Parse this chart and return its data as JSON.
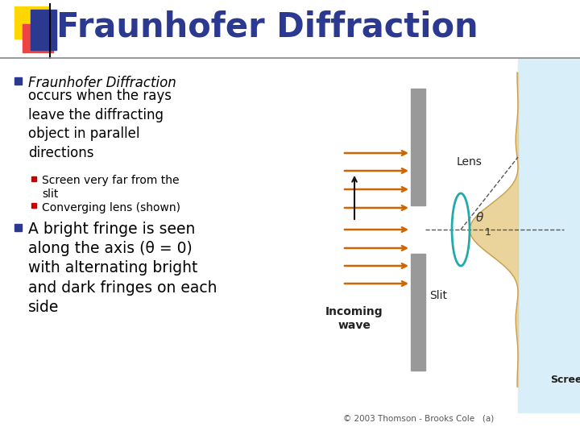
{
  "title": "Fraunhofer Diffraction",
  "title_color": "#2B3990",
  "title_fontsize": 30,
  "bg_color": "#FFFFFF",
  "bullet1_italic": "Fraunhofer Diffraction",
  "bullet1_normal": "occurs when the rays\nleave the diffracting\nobject in parallel\ndirections",
  "sub1": "Screen very far from the\nslit",
  "sub2": "Converging lens (shown)",
  "bullet2": "A bright fringe is seen\nalong the axis (θ = 0)\nwith alternating bright\nand dark fringes on each\nside",
  "bullet_color": "#2B3990",
  "text_color": "#000000",
  "sub_bullet_color": "#CC0000",
  "header_line_color": "#888888",
  "logo_yellow": "#FFD700",
  "logo_red": "#EE4444",
  "logo_blue": "#2B3990",
  "copyright_text": "© 2003 Thomson - Brooks Cole   (a)",
  "screen_label": "Screen",
  "incoming_label": "Incoming\nwave",
  "lens_label": "Lens",
  "slit_label": "Slit",
  "arrow_color": "#CC6600",
  "diagram_bg": "#D8EEF8",
  "pattern_color": "#E8D090",
  "pattern_edge": "#C8A050",
  "slit_color": "#999999",
  "lens_color": "#22AAAA"
}
